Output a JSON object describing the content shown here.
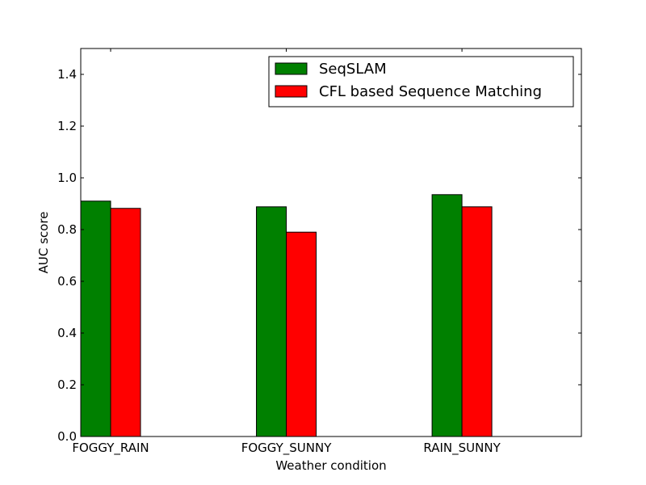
{
  "chart_data": {
    "type": "bar",
    "title": "",
    "xlabel": "Weather condition",
    "ylabel": "AUC score",
    "categories": [
      "FOGGY_RAIN",
      "FOGGY_SUNNY",
      "RAIN_SUNNY"
    ],
    "series": [
      {
        "name": "SeqSLAM",
        "color": "#008000",
        "values": [
          0.91,
          0.888,
          0.935
        ]
      },
      {
        "name": "CFL based Sequence Matching",
        "color": "#ff0000",
        "values": [
          0.882,
          0.79,
          0.888
        ]
      }
    ],
    "ylim": [
      0,
      1.5
    ],
    "yticks": [
      "0.0",
      "0.2",
      "0.4",
      "0.6",
      "0.8",
      "1.0",
      "1.2",
      "1.4"
    ],
    "grid": false,
    "legend_position": "top-right"
  }
}
